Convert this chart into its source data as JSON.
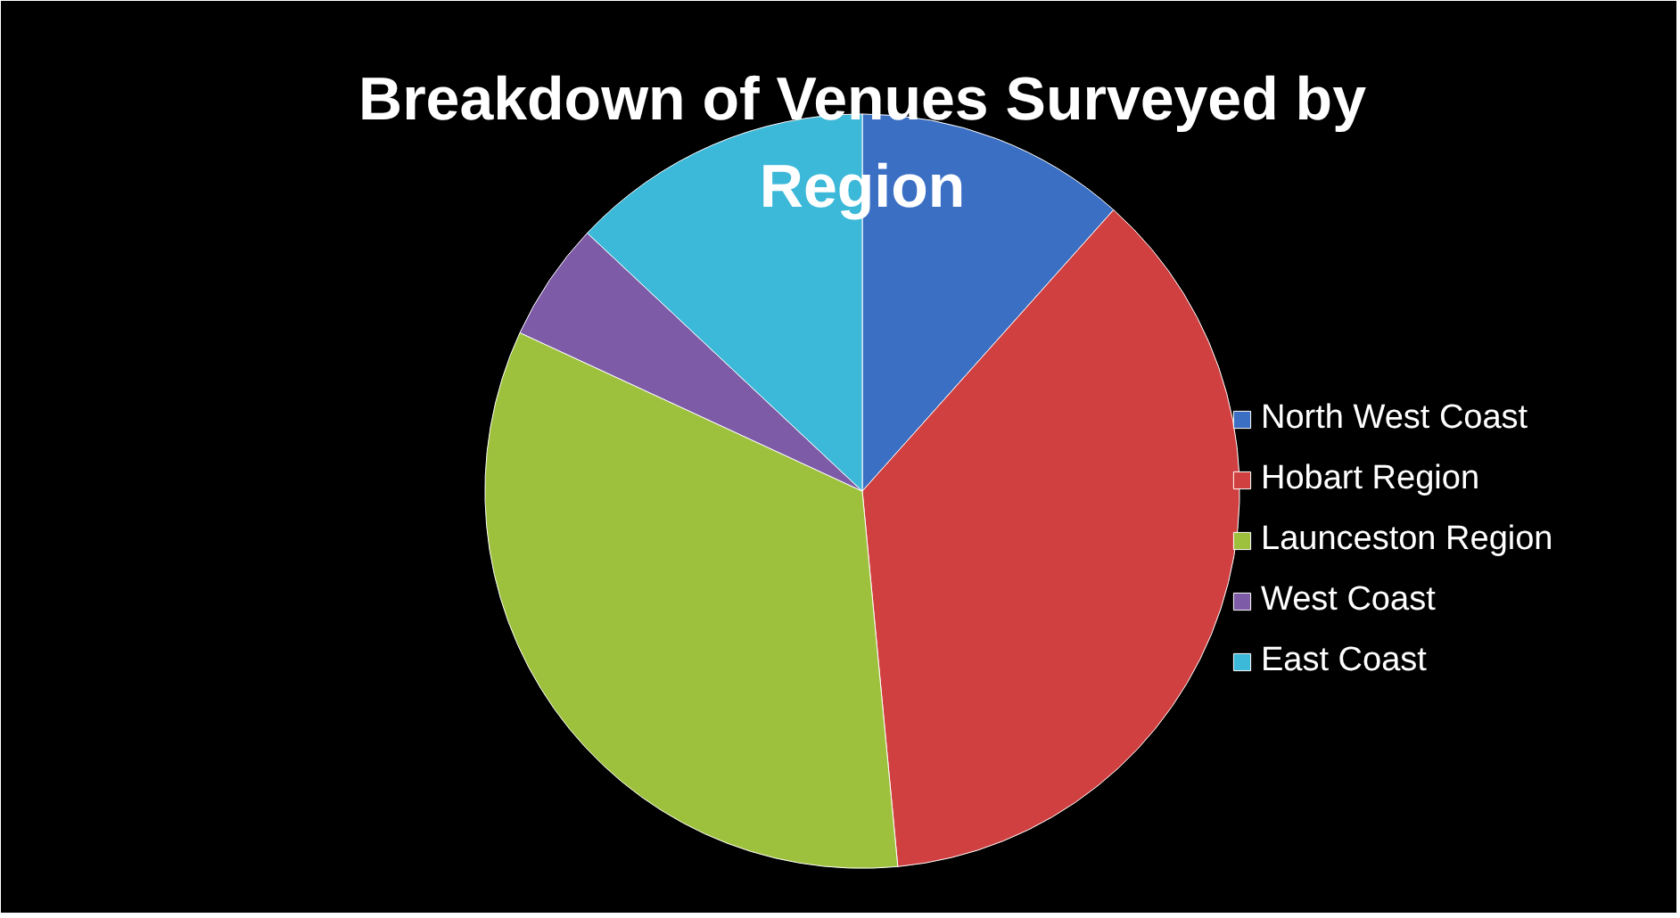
{
  "chart_data": {
    "type": "pie",
    "title": "Breakdown of Venues Surveyed by Region",
    "categories": [
      "North West Coast",
      "Hobart Region",
      "Launceston Region",
      "West Coast",
      "East Coast"
    ],
    "values": [
      11.6,
      36.9,
      33.4,
      5.1,
      13.0
    ],
    "colors": [
      "#3a6fc4",
      "#d04040",
      "#9dc13c",
      "#7d5ba6",
      "#3cb8d8"
    ],
    "legend": "right"
  }
}
